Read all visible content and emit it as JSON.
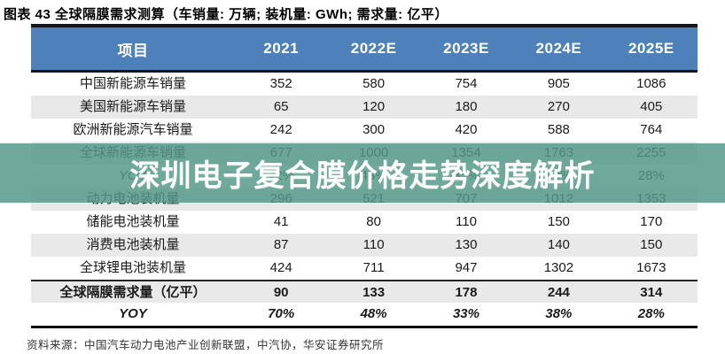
{
  "title": "图表 43 全球隔膜需求测算（车销量: 万辆; 装机量: GWh; 需求量: 亿平）",
  "watermark": {
    "text": "深圳电子复合膜价格走势深度解析"
  },
  "footer": {
    "source": "资料来源：中国汽车动力电池产业创新联盟，中汽协，华安证券研究所"
  },
  "colors": {
    "header_blue": "#4e80ba",
    "stripe_gray": "#e9e9e9",
    "watermark_teal": "rgba(83,153,136,0.84)",
    "border_dark": "#15151d"
  },
  "table": {
    "columns": [
      "项目",
      "2021",
      "2022E",
      "2023E",
      "2024E",
      "2025E"
    ],
    "rows": [
      {
        "label": "中国新能源车销量",
        "values": [
          "352",
          "580",
          "754",
          "905",
          "1086"
        ]
      },
      {
        "label": "美国新能源车销量",
        "values": [
          "65",
          "120",
          "180",
          "270",
          "405"
        ]
      },
      {
        "label": "欧洲新能源汽车销量",
        "values": [
          "242",
          "300",
          "420",
          "588",
          "764"
        ]
      },
      {
        "label": "全球新能源车销量",
        "values": [
          "677",
          "1000",
          "1354",
          "1763",
          "2255"
        ]
      },
      {
        "label": "YOY",
        "values": [
          "72%",
          "48%",
          "35%",
          "30%",
          "28%"
        ],
        "italicLabel": true
      },
      {
        "label": "动力电池装机量",
        "values": [
          "296",
          "521",
          "707",
          "1012",
          "1353"
        ]
      },
      {
        "label": "储能电池装机量",
        "values": [
          "41",
          "80",
          "110",
          "150",
          "170"
        ]
      },
      {
        "label": "消费电池装机量",
        "values": [
          "87",
          "110",
          "130",
          "140",
          "150"
        ]
      },
      {
        "label": "全球锂电池装机量",
        "values": [
          "424",
          "711",
          "947",
          "1302",
          "1673"
        ]
      },
      {
        "label": "全球隔膜需求量（亿平）",
        "values": [
          "90",
          "133",
          "178",
          "244",
          "314"
        ],
        "em": true,
        "sep": true
      },
      {
        "label": "YOY",
        "values": [
          "70%",
          "48%",
          "33%",
          "38%",
          "28%"
        ],
        "em": true,
        "italic": true
      }
    ]
  }
}
